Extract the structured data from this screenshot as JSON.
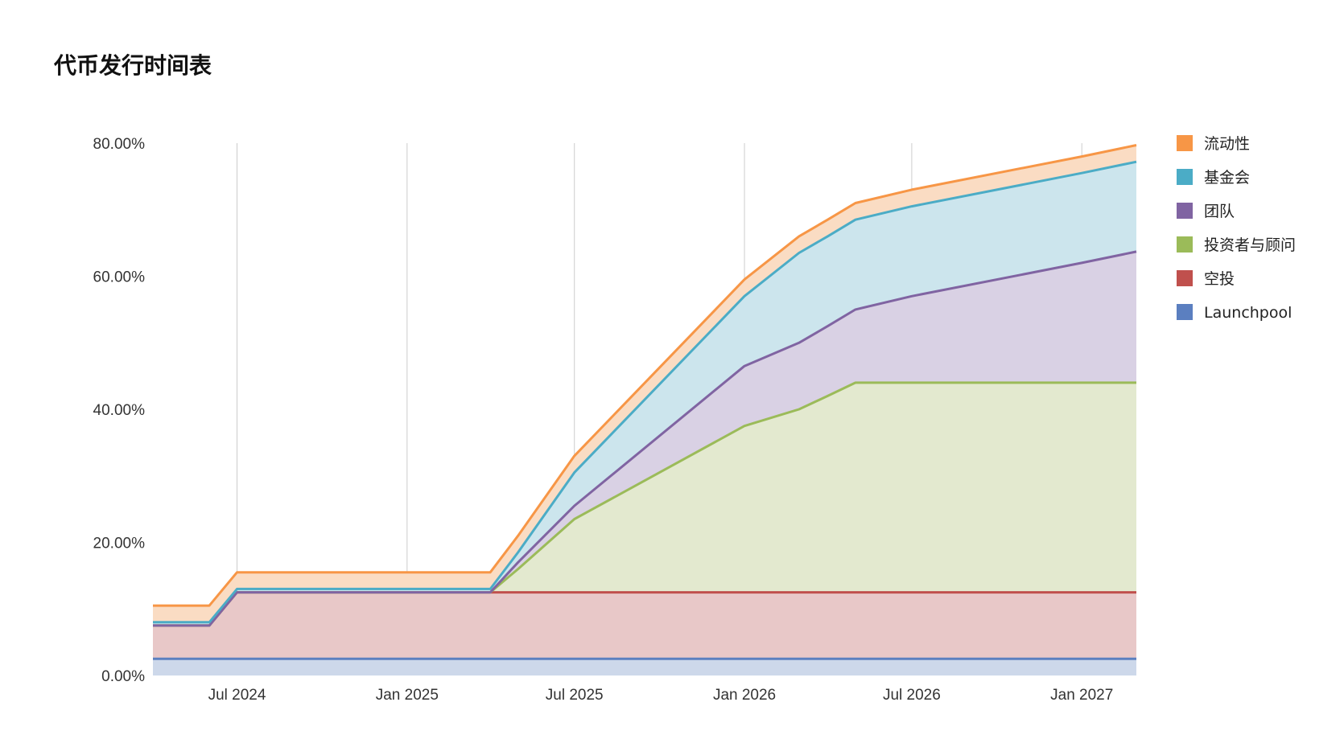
{
  "chart_data": {
    "type": "area",
    "stacked": true,
    "title": "代币发行时间表",
    "xlabel": "",
    "ylabel": "",
    "ylim": [
      0,
      80
    ],
    "y_ticks": [
      "0.00%",
      "20.00%",
      "40.00%",
      "60.00%",
      "80.00%"
    ],
    "y_tick_values": [
      0,
      20,
      40,
      60,
      80
    ],
    "x_ticks": [
      "Jul 2024",
      "Jan 2025",
      "Jul 2025",
      "Jan 2026",
      "Jul 2026",
      "Jan 2027"
    ],
    "x_tick_dates": [
      "2024-07-01",
      "2025-01-01",
      "2025-07-01",
      "2026-01-01",
      "2026-07-01",
      "2027-01-01"
    ],
    "xlim": [
      "2024-04-01",
      "2027-03-01"
    ],
    "grid": "vertical",
    "legend_position": "right",
    "x": [
      "2024-04-01",
      "2024-06-01",
      "2024-07-01",
      "2024-09-01",
      "2024-10-01",
      "2025-01-01",
      "2025-04-01",
      "2025-05-01",
      "2025-07-01",
      "2026-01-01",
      "2026-03-01",
      "2026-04-01",
      "2026-05-01",
      "2026-07-01",
      "2027-01-01",
      "2027-03-01"
    ],
    "series": [
      {
        "name": "Launchpool",
        "color": "#5b7fc0",
        "fill": "#cdd8ea",
        "values": [
          2.5,
          2.5,
          2.5,
          2.5,
          2.5,
          2.5,
          2.5,
          2.5,
          2.5,
          2.5,
          2.5,
          2.5,
          2.5,
          2.5,
          2.5,
          2.5
        ]
      },
      {
        "name": "空投",
        "color": "#c0504d",
        "fill": "#e8c8c8",
        "values": [
          5,
          5,
          10,
          10,
          10,
          10,
          10,
          10,
          10,
          10,
          10,
          10,
          10,
          10,
          10,
          10
        ]
      },
      {
        "name": "投资者与顾问",
        "color": "#9bbb59",
        "fill": "#e3e9cf",
        "values": [
          0,
          0,
          0,
          0,
          0,
          0,
          0,
          3.5,
          11,
          25,
          27.5,
          29.5,
          31.5,
          31.5,
          31.5,
          31.5
        ]
      },
      {
        "name": "团队",
        "color": "#8064a2",
        "fill": "#d9d1e4",
        "values": [
          0,
          0,
          0,
          0,
          0,
          0,
          0,
          1,
          2,
          9,
          10,
          10.5,
          11,
          13,
          18,
          19.7
        ]
      },
      {
        "name": "基金会",
        "color": "#4bacc6",
        "fill": "#cce5ed",
        "values": [
          0.5,
          0.5,
          0.5,
          0.5,
          0.5,
          0.5,
          0.5,
          1.5,
          5,
          10.5,
          13.5,
          13.5,
          13.5,
          13.5,
          13.5,
          13.5
        ]
      },
      {
        "name": "流动性",
        "color": "#f79646",
        "fill": "#fadcc3",
        "values": [
          2.5,
          2.5,
          2.5,
          2.5,
          2.5,
          2.5,
          2.5,
          2.5,
          2.5,
          2.5,
          2.5,
          2.5,
          2.5,
          2.5,
          2.5,
          2.5
        ]
      }
    ]
  }
}
